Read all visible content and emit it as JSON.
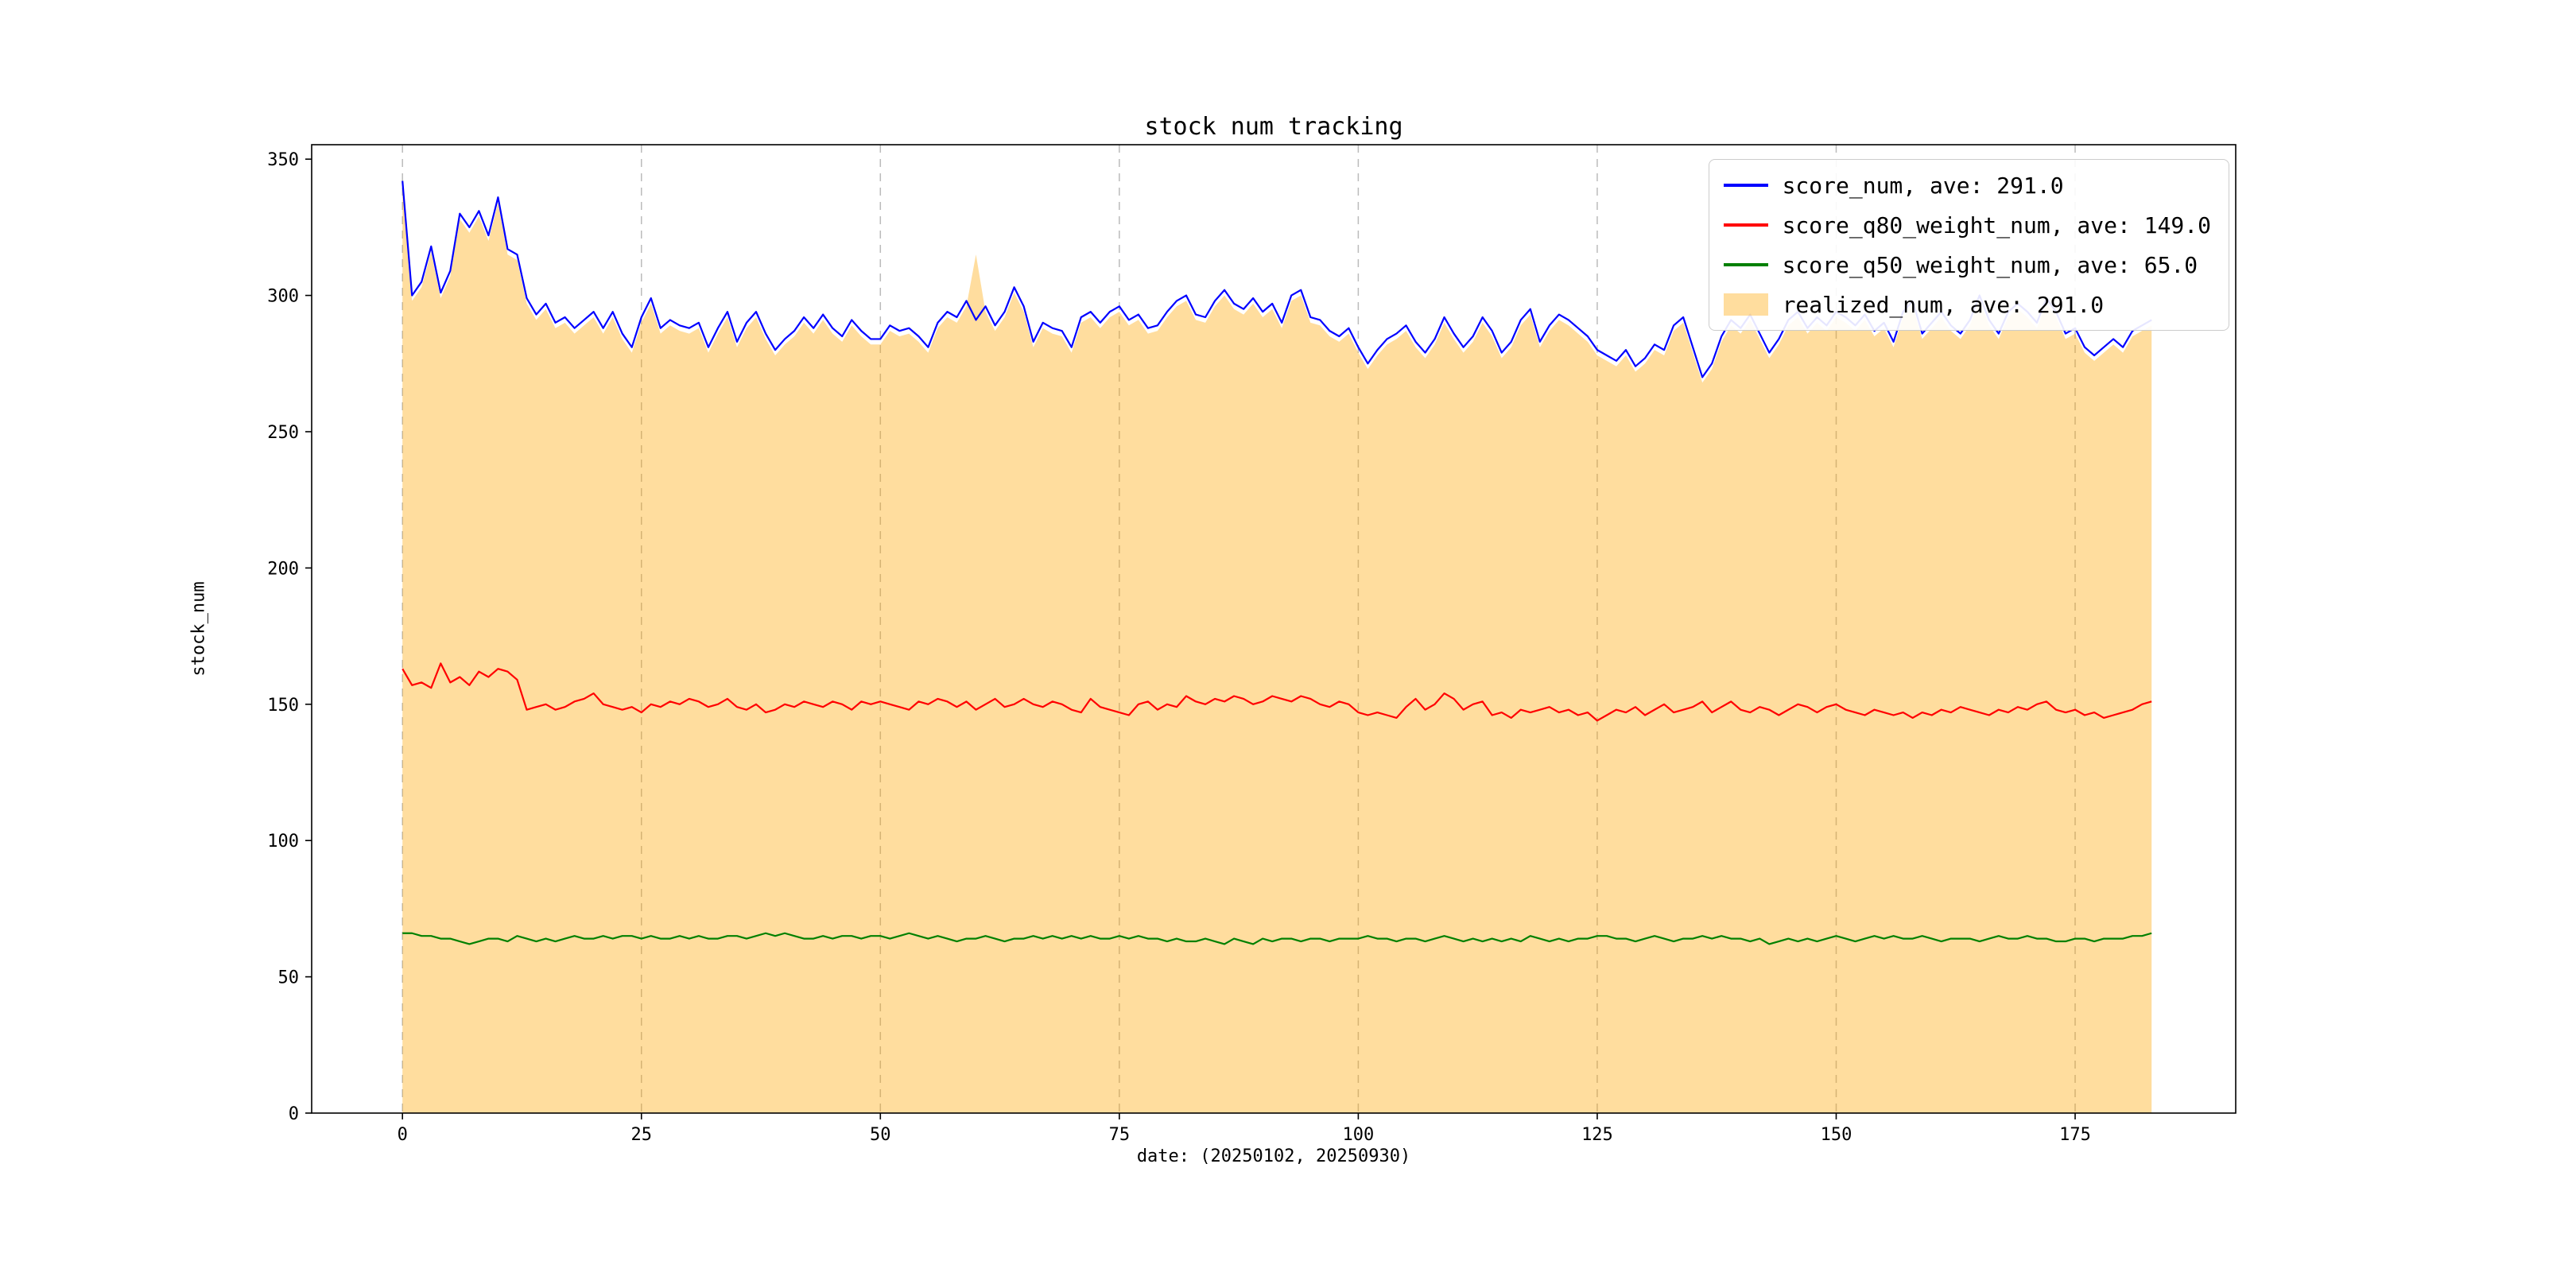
{
  "chart_data": {
    "type": "line",
    "title": "stock num tracking",
    "xlabel": "date: (20250102, 20250930)",
    "ylabel": "stock_num",
    "xlim": [
      -9.5,
      191.8
    ],
    "ylim": [
      0,
      355.3
    ],
    "x_ticks": [
      0,
      25,
      50,
      75,
      100,
      125,
      150,
      175
    ],
    "y_ticks": [
      0,
      50,
      100,
      150,
      200,
      250,
      300,
      350
    ],
    "grid": "vertical-dashed",
    "grid_color": "#bbbbbb",
    "legend_position": "upper right",
    "x": {
      "start": 0,
      "step": 1,
      "count": 184
    },
    "series": [
      {
        "name": "score_num, ave: 291.0",
        "kind": "line",
        "color": "#0000ff",
        "values": [
          342,
          300,
          305,
          318,
          301,
          309,
          330,
          325,
          331,
          322,
          336,
          317,
          315,
          299,
          293,
          297,
          290,
          292,
          288,
          291,
          294,
          288,
          294,
          286,
          281,
          292,
          299,
          288,
          291,
          289,
          288,
          290,
          281,
          288,
          294,
          283,
          290,
          294,
          286,
          280,
          284,
          287,
          292,
          288,
          293,
          288,
          285,
          291,
          287,
          284,
          284,
          289,
          287,
          288,
          285,
          281,
          290,
          294,
          292,
          298,
          291,
          296,
          289,
          294,
          303,
          296,
          283,
          290,
          288,
          287,
          281,
          292,
          294,
          290,
          294,
          296,
          291,
          293,
          288,
          289,
          294,
          298,
          300,
          293,
          292,
          298,
          302,
          297,
          295,
          299,
          294,
          297,
          290,
          300,
          302,
          292,
          291,
          287,
          285,
          288,
          281,
          275,
          280,
          284,
          286,
          289,
          283,
          279,
          284,
          292,
          286,
          281,
          285,
          292,
          287,
          279,
          283,
          291,
          295,
          283,
          289,
          293,
          291,
          288,
          285,
          280,
          278,
          276,
          280,
          274,
          277,
          282,
          280,
          289,
          292,
          281,
          270,
          275,
          285,
          291,
          288,
          293,
          286,
          279,
          284,
          291,
          294,
          288,
          292,
          289,
          294,
          292,
          289,
          293,
          287,
          290,
          283,
          294,
          298,
          286,
          290,
          294,
          289,
          286,
          291,
          300,
          291,
          286,
          294,
          297,
          294,
          290,
          299,
          294,
          286,
          288,
          281,
          278,
          281,
          284,
          281,
          287,
          289,
          291
        ]
      },
      {
        "name": "score_q80_weight_num, ave: 149.0",
        "kind": "line",
        "color": "#ff0000",
        "values": [
          163,
          157,
          158,
          156,
          165,
          158,
          160,
          157,
          162,
          160,
          163,
          162,
          159,
          148,
          149,
          150,
          148,
          149,
          151,
          152,
          154,
          150,
          149,
          148,
          149,
          147,
          150,
          149,
          151,
          150,
          152,
          151,
          149,
          150,
          152,
          149,
          148,
          150,
          147,
          148,
          150,
          149,
          151,
          150,
          149,
          151,
          150,
          148,
          151,
          150,
          151,
          150,
          149,
          148,
          151,
          150,
          152,
          151,
          149,
          151,
          148,
          150,
          152,
          149,
          150,
          152,
          150,
          149,
          151,
          150,
          148,
          147,
          152,
          149,
          148,
          147,
          146,
          150,
          151,
          148,
          150,
          149,
          153,
          151,
          150,
          152,
          151,
          153,
          152,
          150,
          151,
          153,
          152,
          151,
          153,
          152,
          150,
          149,
          151,
          150,
          147,
          146,
          147,
          146,
          145,
          149,
          152,
          148,
          150,
          154,
          152,
          148,
          150,
          151,
          146,
          147,
          145,
          148,
          147,
          148,
          149,
          147,
          148,
          146,
          147,
          144,
          146,
          148,
          147,
          149,
          146,
          148,
          150,
          147,
          148,
          149,
          151,
          147,
          149,
          151,
          148,
          147,
          149,
          148,
          146,
          148,
          150,
          149,
          147,
          149,
          150,
          148,
          147,
          146,
          148,
          147,
          146,
          147,
          145,
          147,
          146,
          148,
          147,
          149,
          148,
          147,
          146,
          148,
          147,
          149,
          148,
          150,
          151,
          148,
          147,
          148,
          146,
          147,
          145,
          146,
          147,
          148,
          150,
          151
        ]
      },
      {
        "name": "score_q50_weight_num, ave: 65.0",
        "kind": "line",
        "color": "#008000",
        "values": [
          66,
          66,
          65,
          65,
          64,
          64,
          63,
          62,
          63,
          64,
          64,
          63,
          65,
          64,
          63,
          64,
          63,
          64,
          65,
          64,
          64,
          65,
          64,
          65,
          65,
          64,
          65,
          64,
          64,
          65,
          64,
          65,
          64,
          64,
          65,
          65,
          64,
          65,
          66,
          65,
          66,
          65,
          64,
          64,
          65,
          64,
          65,
          65,
          64,
          65,
          65,
          64,
          65,
          66,
          65,
          64,
          65,
          64,
          63,
          64,
          64,
          65,
          64,
          63,
          64,
          64,
          65,
          64,
          65,
          64,
          65,
          64,
          65,
          64,
          64,
          65,
          64,
          65,
          64,
          64,
          63,
          64,
          63,
          63,
          64,
          63,
          62,
          64,
          63,
          62,
          64,
          63,
          64,
          64,
          63,
          64,
          64,
          63,
          64,
          64,
          64,
          65,
          64,
          64,
          63,
          64,
          64,
          63,
          64,
          65,
          64,
          63,
          64,
          63,
          64,
          63,
          64,
          63,
          65,
          64,
          63,
          64,
          63,
          64,
          64,
          65,
          65,
          64,
          64,
          63,
          64,
          65,
          64,
          63,
          64,
          64,
          65,
          64,
          65,
          64,
          64,
          63,
          64,
          62,
          63,
          64,
          63,
          64,
          63,
          64,
          65,
          64,
          63,
          64,
          65,
          64,
          65,
          64,
          64,
          65,
          64,
          63,
          64,
          64,
          64,
          63,
          64,
          65,
          64,
          64,
          65,
          64,
          64,
          63,
          63,
          64,
          64,
          63,
          64,
          64,
          64,
          65,
          65,
          66
        ]
      },
      {
        "name": "realized_num, ave: 291.0",
        "kind": "area",
        "color": "rgba(255,165,0,0.38)",
        "values": [
          342,
          298,
          303,
          316,
          299,
          307,
          328,
          323,
          329,
          320,
          334,
          315,
          313,
          297,
          291,
          295,
          288,
          290,
          286,
          289,
          292,
          286,
          292,
          284,
          279,
          290,
          297,
          286,
          289,
          287,
          286,
          288,
          279,
          286,
          292,
          281,
          288,
          292,
          284,
          278,
          282,
          285,
          290,
          286,
          291,
          286,
          283,
          289,
          285,
          282,
          282,
          287,
          285,
          286,
          283,
          279,
          288,
          292,
          290,
          296,
          315,
          294,
          287,
          292,
          301,
          294,
          281,
          288,
          286,
          285,
          279,
          290,
          292,
          288,
          292,
          294,
          289,
          291,
          286,
          287,
          292,
          296,
          298,
          291,
          290,
          296,
          300,
          295,
          293,
          297,
          292,
          295,
          288,
          298,
          300,
          290,
          289,
          285,
          283,
          286,
          279,
          273,
          278,
          282,
          284,
          287,
          281,
          277,
          282,
          290,
          284,
          279,
          283,
          290,
          285,
          277,
          281,
          289,
          293,
          281,
          287,
          291,
          289,
          286,
          283,
          278,
          276,
          274,
          278,
          272,
          275,
          280,
          278,
          287,
          290,
          279,
          268,
          273,
          283,
          289,
          286,
          291,
          284,
          277,
          282,
          289,
          292,
          286,
          290,
          287,
          292,
          290,
          287,
          291,
          285,
          288,
          281,
          292,
          296,
          284,
          288,
          292,
          287,
          284,
          289,
          298,
          289,
          284,
          292,
          295,
          292,
          288,
          297,
          292,
          284,
          286,
          279,
          276,
          279,
          282,
          279,
          285,
          287,
          289
        ]
      }
    ]
  }
}
